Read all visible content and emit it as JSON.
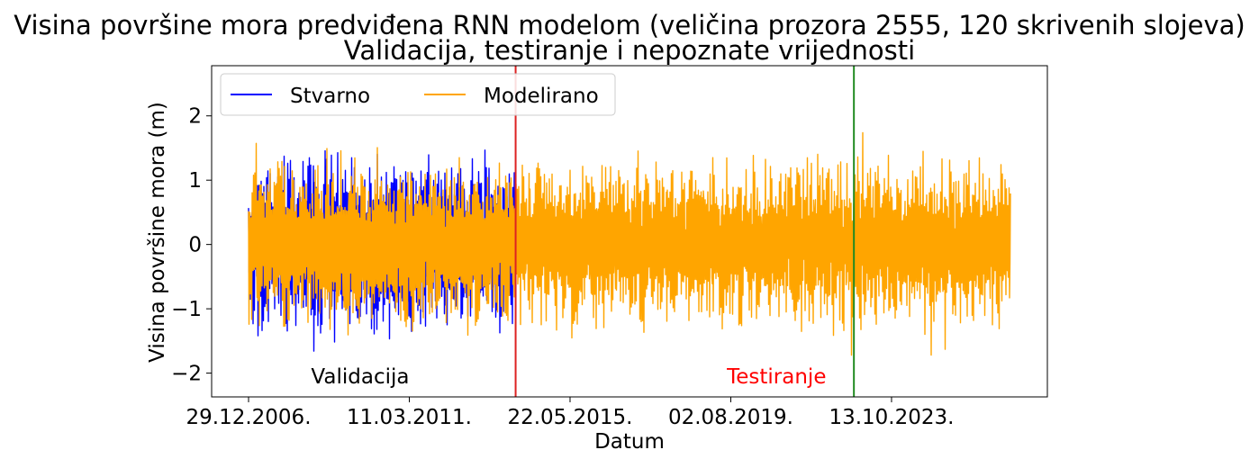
{
  "chart_data": {
    "type": "line",
    "title": "Visina površine mora predviđena RNN modelom (veličina prozora 2555, 120 skrivenih slojeva)",
    "subtitle": "Validacija, testiranje i nepoznate vrijednosti",
    "xlabel": "Datum",
    "ylabel": "Visina površine mora (m)",
    "x_range": [
      "2006-12-29",
      "2026-11-20"
    ],
    "x_ticks": [
      {
        "date": "2006-12-29",
        "label": "29.12.2006."
      },
      {
        "date": "2011-03-11",
        "label": "11.03.2011."
      },
      {
        "date": "2015-05-22",
        "label": "22.05.2015."
      },
      {
        "date": "2019-08-02",
        "label": "02.08.2019."
      },
      {
        "date": "2023-10-13",
        "label": "13.10.2023."
      }
    ],
    "y_ticks": [
      {
        "value": 2,
        "label": "2"
      },
      {
        "value": 1,
        "label": "1"
      },
      {
        "value": 0,
        "label": "0"
      },
      {
        "value": -1,
        "label": "−1"
      },
      {
        "value": -2,
        "label": "−2"
      }
    ],
    "ylim": [
      -2.37,
      2.78
    ],
    "grid": false,
    "legend_position": "top-left",
    "series": [
      {
        "name": "Stvarno",
        "color": "#0000ff",
        "x_start": "2006-12-29",
        "x_end": "2013-12-19",
        "amplitude_envelope": [
          1.25,
          1.6
        ]
      },
      {
        "name": "Modelirano",
        "color": "#ffa500",
        "x_start": "2006-12-29",
        "x_end": "2026-11-20",
        "amplitude_envelope": [
          1.25,
          1.6
        ]
      }
    ],
    "vertical_lines": [
      {
        "date": "2013-12-19",
        "color": "#dd2222"
      },
      {
        "date": "2022-10-19",
        "color": "#228b22"
      }
    ],
    "annotations": [
      {
        "text": "Validacija",
        "date": "2010-01-01",
        "y": -2.05,
        "color": "#000000"
      },
      {
        "text": "Testiranje",
        "date": "2020-11-15",
        "y": -2.05,
        "color": "#ff0000"
      }
    ]
  }
}
